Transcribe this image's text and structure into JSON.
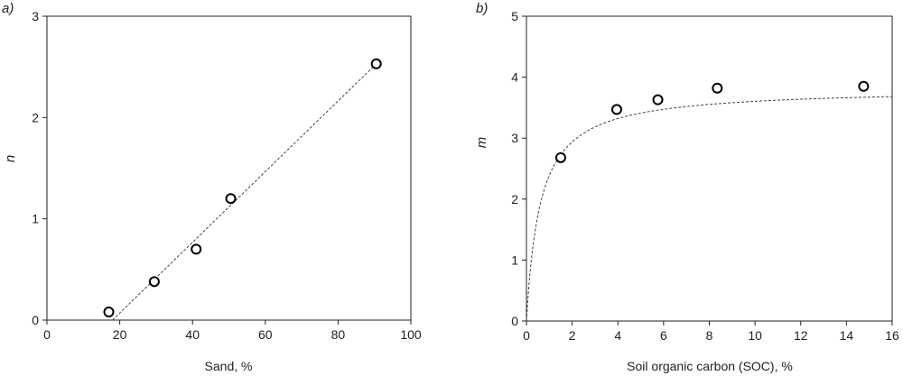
{
  "colors": {
    "axis": "#222222",
    "marker_stroke": "#000000",
    "fit_line": "#444444"
  },
  "chart_data": [
    {
      "type": "scatter",
      "panel_label": "a)",
      "title": "",
      "xlabel": "Sand, %",
      "ylabel": "n",
      "xlim": [
        0,
        100
      ],
      "ylim": [
        0,
        3
      ],
      "xticks": [
        "0",
        "20",
        "40",
        "60",
        "80",
        "100"
      ],
      "yticks": [
        "0",
        "1",
        "2",
        "3"
      ],
      "grid": false,
      "legend": "none",
      "series": [
        {
          "x": [
            17,
            29.5,
            41,
            50.5,
            90.5
          ],
          "y": [
            0.08,
            0.38,
            0.7,
            1.2,
            2.53
          ]
        }
      ],
      "fit": {
        "type": "linear",
        "x": [
          18,
          90.5
        ],
        "y": [
          0,
          2.53
        ]
      }
    },
    {
      "type": "scatter",
      "panel_label": "b)",
      "title": "",
      "xlabel": "Soil organic carbon (SOC), %",
      "ylabel": "m",
      "xlim": [
        0,
        16
      ],
      "ylim": [
        0,
        5
      ],
      "xticks": [
        "0",
        "2",
        "4",
        "6",
        "8",
        "10",
        "12",
        "14",
        "16"
      ],
      "yticks": [
        "0",
        "1",
        "2",
        "3",
        "4",
        "5"
      ],
      "grid": false,
      "legend": "none",
      "series": [
        {
          "x": [
            1.5,
            3.95,
            5.75,
            8.35,
            14.75
          ],
          "y": [
            2.68,
            3.47,
            3.63,
            3.82,
            3.85
          ]
        }
      ],
      "fit": {
        "type": "saturating",
        "asymptote": 3.82,
        "half_saturation": 0.6
      }
    }
  ]
}
